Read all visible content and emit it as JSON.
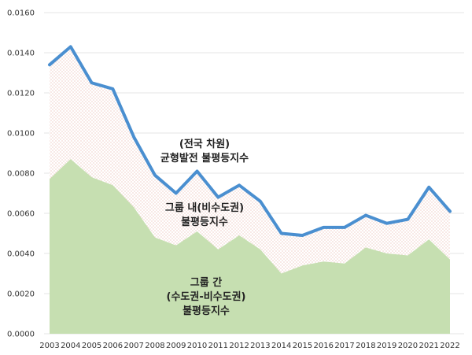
{
  "chart_data": {
    "type": "area",
    "x": [
      "2003",
      "2004",
      "2005",
      "2006",
      "2007",
      "2008",
      "2009",
      "2010",
      "2011",
      "2012",
      "2013",
      "2014",
      "2015",
      "2016",
      "2017",
      "2018",
      "2019",
      "2020",
      "2021",
      "2022"
    ],
    "ylim": [
      0,
      0.016
    ],
    "yticks": [
      "0.0000",
      "0.0020",
      "0.0040",
      "0.0060",
      "0.0080",
      "0.0100",
      "0.0120",
      "0.0140",
      "0.0160"
    ],
    "grid": true,
    "series": [
      {
        "values": [
          0.0134,
          0.0143,
          0.0125,
          0.0122,
          0.0098,
          0.0079,
          0.007,
          0.0081,
          0.0068,
          0.0074,
          0.0066,
          0.005,
          0.0049,
          0.0053,
          0.0053,
          0.0059,
          0.0055,
          0.0057,
          0.0073,
          0.0061
        ],
        "color": "#4a8fd0"
      },
      {
        "values": [
          0.0077,
          0.0087,
          0.0078,
          0.0074,
          0.0063,
          0.0048,
          0.0044,
          0.0051,
          0.0042,
          0.0049,
          0.0042,
          0.003,
          0.0034,
          0.0036,
          0.0035,
          0.0043,
          0.004,
          0.0039,
          0.0047,
          0.0037
        ],
        "color": "#c6dfb1"
      }
    ],
    "annotations": [
      {
        "lines": [
          "(전국 차원)",
          "균형발전 불평등지수"
        ]
      },
      {
        "lines": [
          "그룹 내(비수도권)",
          "불평등지수"
        ]
      },
      {
        "lines": [
          "그룹 간",
          "(수도권-비수도권)",
          "불평등지수"
        ]
      }
    ],
    "colors": {
      "total_line": "#4a8fd0",
      "between_fill": "#c6dfb1",
      "within_dots": "#e8b4a8"
    }
  }
}
